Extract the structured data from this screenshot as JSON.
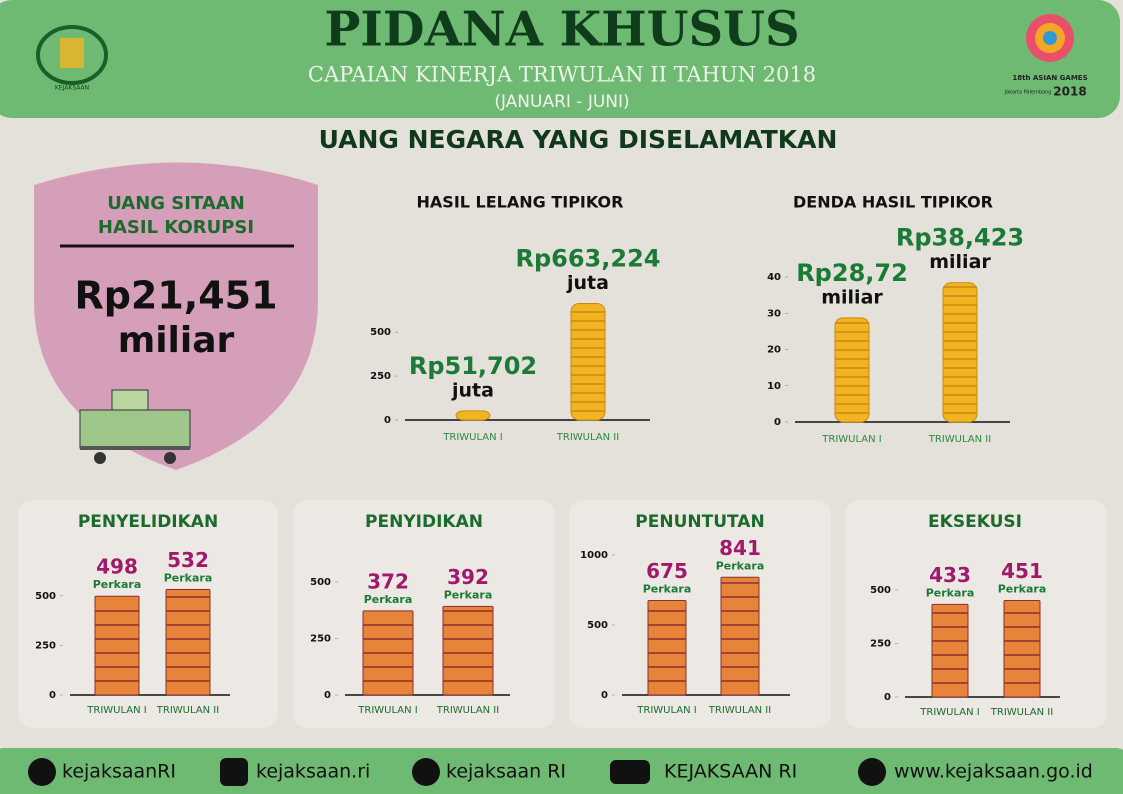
{
  "header": {
    "title": "PIDANA KHUSUS",
    "subtitle": "CAPAIAN KINERJA TRIWULAN II TAHUN 2018",
    "period": "(JANUARI - JUNI)",
    "logo_text": "18th ASIAN GAMES",
    "logo_city": "Jakarta Palembang",
    "logo_year": "2018"
  },
  "section_title": "UANG NEGARA YANG DISELAMATKAN",
  "sitaan": {
    "title_line1": "UANG SITAAN",
    "title_line2": "HASIL KORUPSI",
    "amount": "Rp21,451",
    "unit": "miliar"
  },
  "chart_data": [
    {
      "type": "bar",
      "title": "HASIL LELANG TIPIKOR",
      "categories": [
        "TRIWULAN I",
        "TRIWULAN II"
      ],
      "values": [
        51.702,
        663.224
      ],
      "value_labels": [
        "Rp51,702",
        "Rp663,224"
      ],
      "unit": "juta",
      "ylim": [
        0,
        700
      ],
      "yticks": [
        0,
        250,
        500
      ]
    },
    {
      "type": "bar",
      "title": "DENDA HASIL TIPIKOR",
      "categories": [
        "TRIWULAN I",
        "TRIWULAN II"
      ],
      "values": [
        28.72,
        38.423
      ],
      "value_labels": [
        "Rp28,72",
        "Rp38,423"
      ],
      "unit": "miliar",
      "ylim": [
        0,
        40
      ],
      "yticks": [
        0,
        10,
        20,
        30,
        40
      ]
    },
    {
      "type": "bar",
      "title": "PENYELIDIKAN",
      "categories": [
        "TRIWULAN I",
        "TRIWULAN II"
      ],
      "values": [
        498,
        532
      ],
      "unit": "Perkara",
      "ylim": [
        0,
        600
      ],
      "yticks": [
        0,
        250,
        500
      ]
    },
    {
      "type": "bar",
      "title": "PENYIDIKAN",
      "categories": [
        "TRIWULAN I",
        "TRIWULAN II"
      ],
      "values": [
        372,
        392
      ],
      "unit": "Perkara",
      "ylim": [
        0,
        500
      ],
      "yticks": [
        0,
        250,
        500
      ]
    },
    {
      "type": "bar",
      "title": "PENUNTUTAN",
      "categories": [
        "TRIWULAN I",
        "TRIWULAN II"
      ],
      "values": [
        675,
        841
      ],
      "unit": "Perkara",
      "ylim": [
        0,
        1000
      ],
      "yticks": [
        0,
        500,
        1000
      ]
    },
    {
      "type": "bar",
      "title": "EKSEKUSI",
      "categories": [
        "TRIWULAN I",
        "TRIWULAN II"
      ],
      "values": [
        433,
        451
      ],
      "unit": "Perkara",
      "ylim": [
        0,
        500
      ],
      "yticks": [
        0,
        250,
        500
      ]
    }
  ],
  "footer": {
    "twitter": "kejaksaanRI",
    "instagram": "kejaksaan.ri",
    "facebook": "kejaksaan RI",
    "youtube": "KEJAKSAAN RI",
    "website": "www.kejaksaan.go.id"
  }
}
